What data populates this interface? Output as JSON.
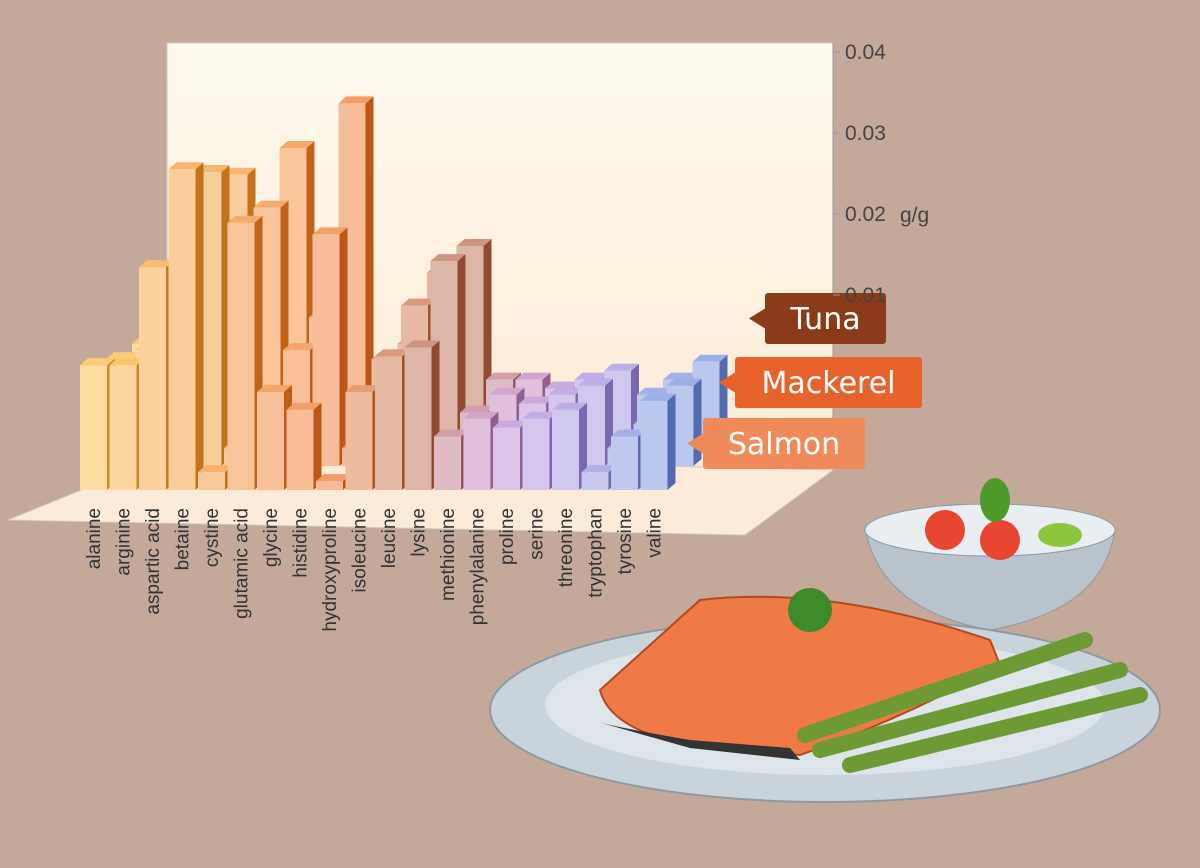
{
  "chart_data": {
    "type": "bar3d",
    "y_label": "g/g",
    "categories": [
      "alanine",
      "arginine",
      "aspartic acid",
      "betaine",
      "cystine",
      "glutamic acid",
      "glycine",
      "histidine",
      "hydroxyproline",
      "isoleucine",
      "leucine",
      "lysine",
      "methionine",
      "phenylalanine",
      "proline",
      "serine",
      "threonine",
      "tryptophan",
      "tyrosine",
      "valine"
    ],
    "category_colors": [
      "#F8B12E",
      "#F7A52A",
      "#F59A26",
      "#F39023",
      "#F28620",
      "#F17C1E",
      "#F0741C",
      "#EE6C1A",
      "#E8661C",
      "#D9682A",
      "#C76437",
      "#B45C3E",
      "#B86A7A",
      "#B974B4",
      "#AF7CCB",
      "#A47FD6",
      "#9782D9",
      "#8584DB",
      "#7385DC",
      "#6684DA"
    ],
    "series": [
      {
        "name": "Salmon",
        "color": "#F08A5A",
        "values": [
          0.014,
          0.014,
          0.025,
          0.036,
          0.002,
          0.03,
          0.011,
          0.009,
          0.001,
          0.011,
          0.015,
          0.016,
          0.006,
          0.008,
          0.007,
          0.008,
          0.009,
          0.002,
          0.006,
          0.01
        ]
      },
      {
        "name": "Mackerel",
        "color": "#E8622C",
        "values": [
          0.012,
          0.013,
          0.023,
          0.033,
          0.002,
          0.029,
          0.013,
          0.026,
          0.002,
          0.012,
          0.018,
          0.023,
          0.006,
          0.008,
          0.007,
          0.008,
          0.009,
          0.002,
          0.008,
          0.009
        ]
      },
      {
        "name": "Tuna",
        "color": "#8B3A1A",
        "values": [
          0.011,
          0.012,
          0.021,
          0.03,
          0.002,
          0.033,
          0.014,
          0.038,
          0.002,
          0.011,
          0.019,
          0.022,
          0.007,
          0.007,
          0.006,
          0.007,
          0.008,
          0.002,
          0.007,
          0.009
        ]
      }
    ],
    "ylim": [
      0,
      0.04
    ],
    "yticks": [
      0.01,
      0.02,
      0.03,
      0.04
    ]
  }
}
